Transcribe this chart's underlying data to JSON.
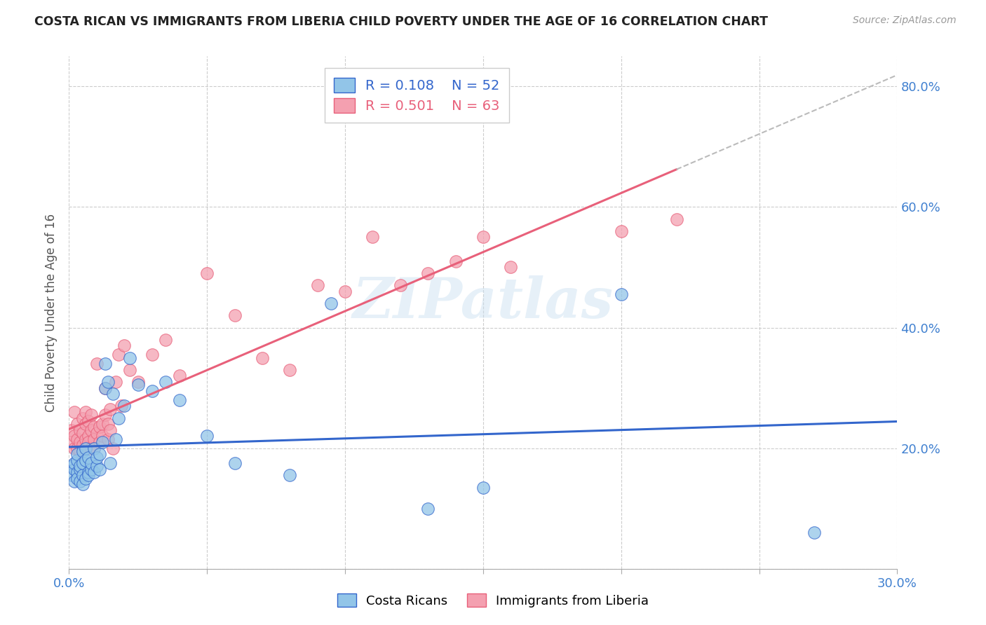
{
  "title": "COSTA RICAN VS IMMIGRANTS FROM LIBERIA CHILD POVERTY UNDER THE AGE OF 16 CORRELATION CHART",
  "source": "Source: ZipAtlas.com",
  "ylabel": "Child Poverty Under the Age of 16",
  "x_min": 0.0,
  "x_max": 0.3,
  "y_min": 0.0,
  "y_max": 0.85,
  "x_ticks": [
    0.0,
    0.05,
    0.1,
    0.15,
    0.2,
    0.25,
    0.3
  ],
  "x_tick_labels": [
    "0.0%",
    "",
    "",
    "",
    "",
    "",
    "30.0%"
  ],
  "y_ticks": [
    0.0,
    0.2,
    0.4,
    0.6,
    0.8
  ],
  "y_tick_labels": [
    "",
    "20.0%",
    "40.0%",
    "60.0%",
    "80.0%"
  ],
  "blue_R": 0.108,
  "blue_N": 52,
  "pink_R": 0.501,
  "pink_N": 63,
  "blue_color": "#92C5E8",
  "pink_color": "#F4A0B0",
  "blue_line_color": "#3366CC",
  "pink_line_color": "#E8607A",
  "tick_label_color": "#4080D0",
  "watermark": "ZIPatlas",
  "blue_scatter_x": [
    0.001,
    0.001,
    0.002,
    0.002,
    0.002,
    0.003,
    0.003,
    0.003,
    0.003,
    0.004,
    0.004,
    0.004,
    0.005,
    0.005,
    0.005,
    0.005,
    0.006,
    0.006,
    0.006,
    0.007,
    0.007,
    0.007,
    0.008,
    0.008,
    0.009,
    0.009,
    0.01,
    0.01,
    0.011,
    0.011,
    0.012,
    0.013,
    0.013,
    0.014,
    0.015,
    0.016,
    0.017,
    0.018,
    0.02,
    0.022,
    0.025,
    0.03,
    0.035,
    0.04,
    0.05,
    0.06,
    0.08,
    0.095,
    0.13,
    0.15,
    0.2,
    0.27
  ],
  "blue_scatter_y": [
    0.17,
    0.155,
    0.165,
    0.175,
    0.145,
    0.16,
    0.15,
    0.18,
    0.19,
    0.165,
    0.17,
    0.145,
    0.155,
    0.175,
    0.195,
    0.14,
    0.15,
    0.18,
    0.2,
    0.16,
    0.185,
    0.155,
    0.165,
    0.175,
    0.2,
    0.16,
    0.17,
    0.185,
    0.165,
    0.19,
    0.21,
    0.3,
    0.34,
    0.31,
    0.175,
    0.29,
    0.215,
    0.25,
    0.27,
    0.35,
    0.305,
    0.295,
    0.31,
    0.28,
    0.22,
    0.175,
    0.155,
    0.44,
    0.1,
    0.135,
    0.455,
    0.06
  ],
  "pink_scatter_x": [
    0.001,
    0.001,
    0.002,
    0.002,
    0.002,
    0.003,
    0.003,
    0.003,
    0.004,
    0.004,
    0.004,
    0.005,
    0.005,
    0.005,
    0.006,
    0.006,
    0.006,
    0.006,
    0.007,
    0.007,
    0.007,
    0.008,
    0.008,
    0.008,
    0.009,
    0.009,
    0.009,
    0.01,
    0.01,
    0.011,
    0.011,
    0.012,
    0.012,
    0.013,
    0.013,
    0.014,
    0.014,
    0.015,
    0.015,
    0.016,
    0.017,
    0.018,
    0.019,
    0.02,
    0.022,
    0.025,
    0.03,
    0.035,
    0.04,
    0.05,
    0.06,
    0.07,
    0.08,
    0.09,
    0.1,
    0.11,
    0.12,
    0.13,
    0.14,
    0.15,
    0.16,
    0.2,
    0.22
  ],
  "pink_scatter_y": [
    0.23,
    0.21,
    0.22,
    0.26,
    0.2,
    0.215,
    0.24,
    0.2,
    0.21,
    0.23,
    0.195,
    0.205,
    0.225,
    0.25,
    0.215,
    0.24,
    0.26,
    0.2,
    0.22,
    0.245,
    0.21,
    0.23,
    0.255,
    0.2,
    0.215,
    0.235,
    0.2,
    0.225,
    0.34,
    0.235,
    0.21,
    0.24,
    0.22,
    0.3,
    0.255,
    0.24,
    0.215,
    0.265,
    0.23,
    0.2,
    0.31,
    0.355,
    0.27,
    0.37,
    0.33,
    0.31,
    0.355,
    0.38,
    0.32,
    0.49,
    0.42,
    0.35,
    0.33,
    0.47,
    0.46,
    0.55,
    0.47,
    0.49,
    0.51,
    0.55,
    0.5,
    0.56,
    0.58
  ]
}
